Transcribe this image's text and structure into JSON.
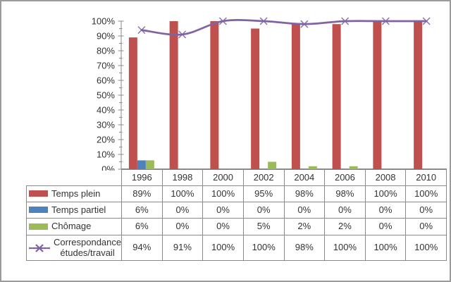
{
  "frame": {
    "background": "#ffffff",
    "border_color": "#9b9b9b"
  },
  "chart_data": {
    "type": "combo",
    "title": "",
    "categories": [
      "1996",
      "1998",
      "2000",
      "2002",
      "2004",
      "2006",
      "2008",
      "2010"
    ],
    "series": [
      {
        "slug": "temps-plein",
        "name": "Temps plein",
        "chart_type": "bar",
        "color": "#C0504D",
        "values": [
          89,
          100,
          100,
          95,
          98,
          98,
          100,
          100
        ],
        "display": [
          "89%",
          "100%",
          "100%",
          "95%",
          "98%",
          "98%",
          "100%",
          "100%"
        ]
      },
      {
        "slug": "temps-partiel",
        "name": "Temps partiel",
        "chart_type": "bar",
        "color": "#4F81BD",
        "values": [
          6,
          0,
          0,
          0,
          0,
          0,
          0,
          0
        ],
        "display": [
          "6%",
          "0%",
          "0%",
          "0%",
          "0%",
          "0%",
          "0%",
          "0%"
        ]
      },
      {
        "slug": "chomage",
        "name": "Chômage",
        "chart_type": "bar",
        "color": "#9BBB59",
        "values": [
          6,
          0,
          0,
          5,
          2,
          2,
          0,
          0
        ],
        "display": [
          "6%",
          "0%",
          "0%",
          "5%",
          "2%",
          "2%",
          "0%",
          "0%"
        ]
      },
      {
        "slug": "correspondance-etudes-travail",
        "name": "Correspondance études/travail",
        "name_lines": [
          "Correspondance",
          "études/travail"
        ],
        "chart_type": "line",
        "marker": "x",
        "smooth": true,
        "color": "#8064A2",
        "values": [
          94,
          91,
          100,
          100,
          98,
          100,
          100,
          100
        ],
        "display": [
          "94%",
          "91%",
          "100%",
          "100%",
          "98%",
          "100%",
          "100%",
          "100%"
        ]
      }
    ],
    "ylim": [
      0,
      100
    ],
    "ytick_step": 10,
    "ytick_minor_step": 5,
    "ytick_labels": [
      "0%",
      "10%",
      "20%",
      "30%",
      "40%",
      "50%",
      "60%",
      "70%",
      "80%",
      "90%",
      "100%"
    ],
    "grid": false,
    "legend_position": "data-table",
    "axis_color": "#8a8a8a",
    "text_color": "#333333"
  }
}
